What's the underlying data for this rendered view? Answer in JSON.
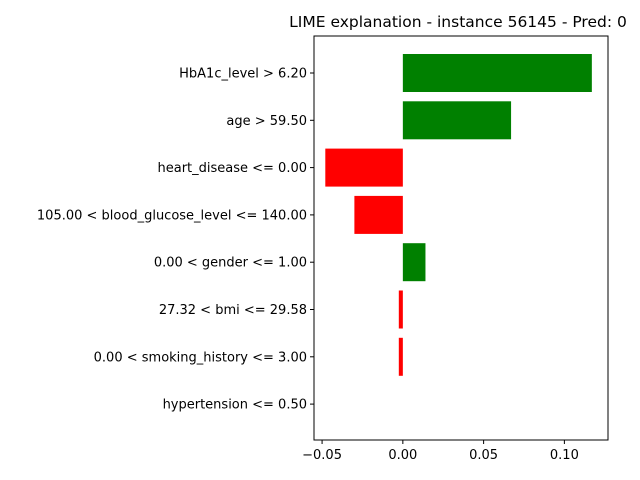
{
  "chart_data": {
    "type": "bar",
    "orientation": "horizontal",
    "title": "LIME explanation - instance 56145 - Pred: 0",
    "categories": [
      "HbA1c_level > 6.20",
      "age > 59.50",
      "heart_disease <= 0.00",
      "105.00 < blood_glucose_level <= 140.00",
      "0.00 < gender <= 1.00",
      "27.32 < bmi <= 29.58",
      "0.00 < smoking_history <= 3.00",
      "hypertension <= 0.50"
    ],
    "values": [
      0.117,
      0.067,
      -0.048,
      -0.03,
      0.014,
      -0.0025,
      -0.0025,
      0.0
    ],
    "xlim": [
      -0.055,
      0.127
    ],
    "xticks": [
      -0.05,
      0.0,
      0.05,
      0.1
    ],
    "xtick_labels": [
      "−0.05",
      "0.00",
      "0.05",
      "0.10"
    ],
    "xlabel": "",
    "ylabel": "",
    "grid": false,
    "colors": {
      "positive": "#008000",
      "negative": "#ff0000"
    }
  }
}
